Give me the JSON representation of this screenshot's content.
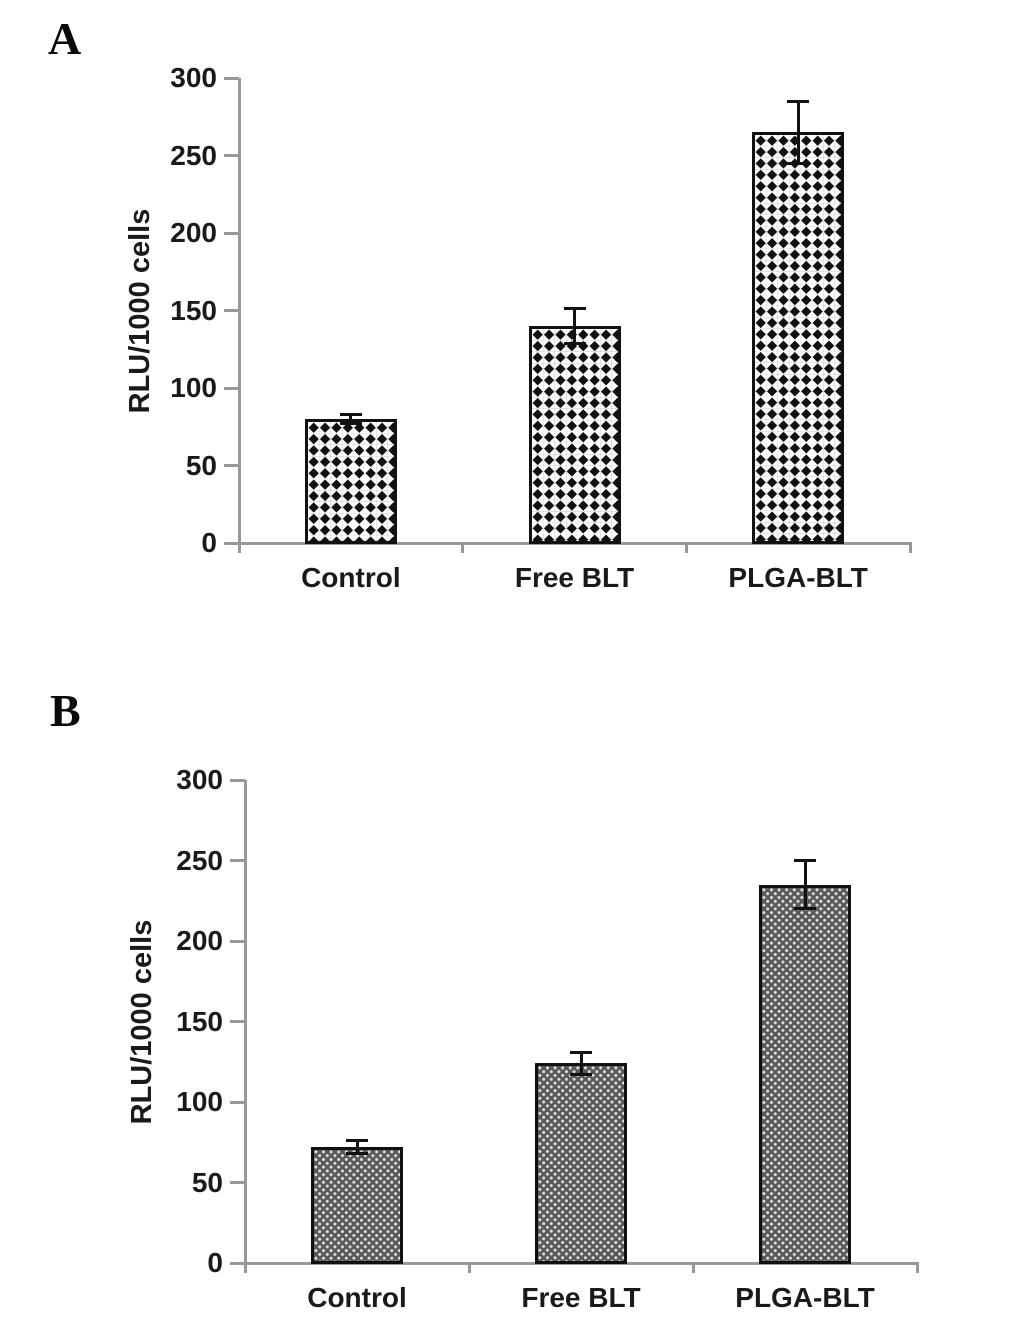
{
  "figure": {
    "description": "Two-panel bar figure, panels labeled A and B"
  },
  "chart_data": [
    {
      "type": "bar",
      "panel_label": "A",
      "title": "",
      "xlabel": "",
      "ylabel": "RLU/1000 cells",
      "categories": [
        "Control",
        "Free BLT",
        "PLGA-BLT"
      ],
      "values": [
        80,
        140,
        265
      ],
      "error_bars": [
        3,
        11,
        20
      ],
      "ylim": [
        0,
        300
      ],
      "ytick_interval": 50,
      "yticks": [
        0,
        50,
        100,
        150,
        200,
        250,
        300
      ],
      "grid": false,
      "legend": "none",
      "bar_pattern": "black-diamond-lattice",
      "bar_fill": "#ffffff",
      "bar_pattern_color": "#111111",
      "bar_border_color": "#111111",
      "error_bar_color": "#111111",
      "axis_color": "#989898",
      "text_color": "#1a1a1a"
    },
    {
      "type": "bar",
      "panel_label": "B",
      "title": "",
      "xlabel": "",
      "ylabel": "RLU/1000 cells",
      "categories": [
        "Control",
        "Free BLT",
        "PLGA-BLT"
      ],
      "values": [
        72,
        124,
        235
      ],
      "error_bars": [
        4,
        7,
        15
      ],
      "ylim": [
        0,
        300
      ],
      "ytick_interval": 50,
      "yticks": [
        0,
        50,
        100,
        150,
        200,
        250,
        300
      ],
      "grid": false,
      "legend": "none",
      "bar_pattern": "white-dot-grid",
      "bar_fill": "#595959",
      "bar_pattern_color": "#dedede",
      "bar_border_color": "#111111",
      "error_bar_color": "#111111",
      "axis_color": "#989898",
      "text_color": "#1a1a1a"
    }
  ]
}
